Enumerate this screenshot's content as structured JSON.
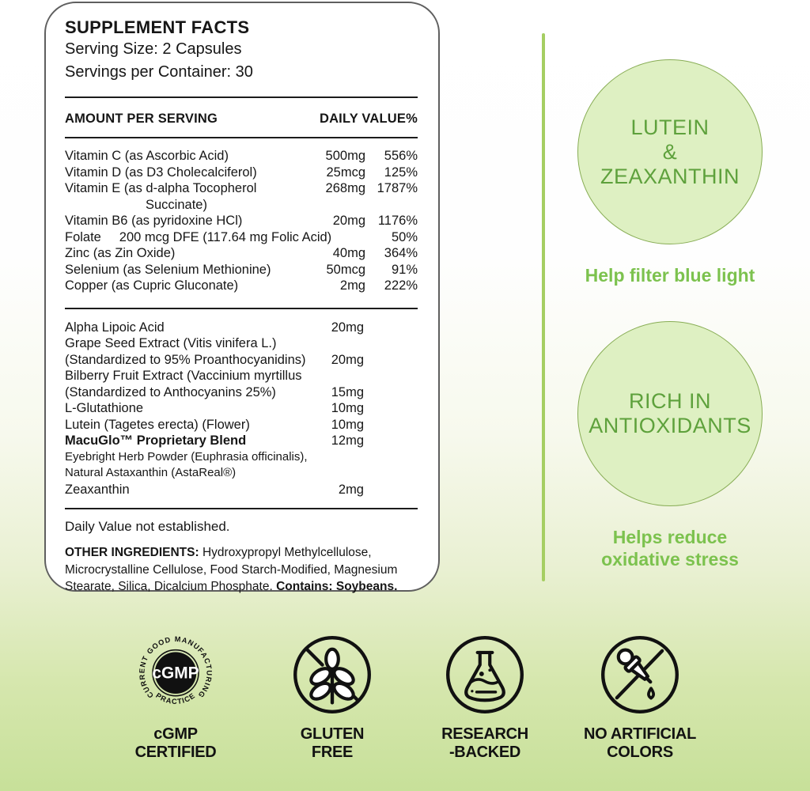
{
  "colors": {
    "accent_green": "#7cc24e",
    "circle_fill": "#def0c2",
    "circle_border": "#88ad55",
    "circle_text": "#5ea13c",
    "divider_green": "#a5ce62",
    "bg_bottom_green": "#c7e099",
    "badge_black": "#111111"
  },
  "panel": {
    "title": "SUPPLEMENT FACTS",
    "serving_size": "Serving Size: 2 Capsules",
    "servings_per_container": "Servings per Container: 30",
    "header_left": "AMOUNT PER SERVING",
    "header_right": "DAILY VALUE%",
    "vitamin_rows": [
      {
        "name": "Vitamin C (as Ascorbic Acid)",
        "amount": "500mg",
        "dv": "556%"
      },
      {
        "name": "Vitamin D (as D3 Cholecalciferol)",
        "amount": "25mcg",
        "dv": "125%"
      },
      {
        "name": "Vitamin E (as d-alpha Tocopherol",
        "amount": "268mg",
        "dv": "1787%"
      },
      {
        "name": "Succinate)",
        "amount": "",
        "dv": "",
        "indent": true
      },
      {
        "name": "Vitamin B6 (as pyridoxine HCl)",
        "amount": "20mg",
        "dv": "1176%"
      },
      {
        "name": "Folate     200 mcg DFE (117.64 mg Folic Acid)",
        "amount": "",
        "dv": "50%",
        "span": true
      },
      {
        "name": "Zinc (as Zin Oxide)",
        "amount": "40mg",
        "dv": "364%"
      },
      {
        "name": "Selenium (as Selenium Methionine)",
        "amount": "50mcg",
        "dv": "91%"
      },
      {
        "name": "Copper (as Cupric Gluconate)",
        "amount": "2mg",
        "dv": "222%"
      }
    ],
    "botanical_rows": [
      {
        "name": "Alpha Lipoic Acid",
        "amount": "20mg"
      },
      {
        "name": "Grape Seed Extract (Vitis vinifera L.)",
        "amount": ""
      },
      {
        "name": "(Standardized to 95% Proanthocyanidins)",
        "amount": "20mg"
      },
      {
        "name": "Bilberry Fruit Extract (Vaccinium myrtillus",
        "amount": ""
      },
      {
        "name": "(Standardized to Anthocyanins 25%)",
        "amount": "15mg"
      },
      {
        "name": "L-Glutathione",
        "amount": "10mg"
      },
      {
        "name": "Lutein (Tagetes erecta) (Flower)",
        "amount": "10mg"
      },
      {
        "name": "MacuGlo™ Proprietary Blend",
        "amount": "12mg",
        "bold": true
      },
      {
        "name": "Eyebright Herb Powder (Euphrasia officinalis),",
        "amount": "",
        "small": true
      },
      {
        "name": "Natural Astaxanthin (AstaReal®)",
        "amount": "",
        "small": true
      },
      {
        "name": "Zeaxanthin",
        "amount": "2mg"
      }
    ],
    "footnote": "Daily Value not established.",
    "other_ingredients_label": "OTHER INGREDIENTS:",
    "other_ingredients_text": " Hydroxypropyl Methylcellulose, Microcrystalline Cellulose, Food Starch-Modified, Magnesium Stearate, Silica, Dicalcium Phosphate. ",
    "contains_label": "Contains: Soybeans."
  },
  "highlights": [
    {
      "circle_lines": [
        "LUTEIN",
        "&",
        "ZEAXANTHIN"
      ],
      "caption_lines": [
        "Help filter blue light"
      ]
    },
    {
      "circle_lines": [
        "RICH IN",
        "ANTIOXIDANTS"
      ],
      "caption_lines": [
        "Helps reduce",
        "oxidative stress"
      ]
    }
  ],
  "badges": [
    {
      "id": "cgmp",
      "label_lines": [
        "cGMP",
        "CERTIFIED"
      ],
      "seal_center": "cGMP",
      "seal_ring_top": "CURRENT GOOD MANUFACTURING",
      "seal_ring_bottom": "PRACTICE"
    },
    {
      "id": "gluten-free",
      "label_lines": [
        "GLUTEN",
        "FREE"
      ]
    },
    {
      "id": "research-backed",
      "label_lines": [
        "RESEARCH",
        "-BACKED"
      ]
    },
    {
      "id": "no-artificial-colors",
      "label_lines": [
        "NO ARTIFICIAL",
        "COLORS"
      ]
    }
  ]
}
